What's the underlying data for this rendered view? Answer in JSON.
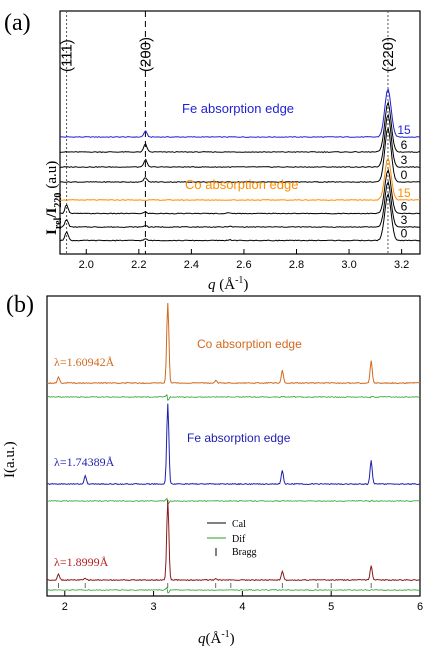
{
  "chart_data": [
    {
      "type": "line",
      "panel_label": "(a)",
      "ylabel_main": "I",
      "ylabel_sub1": "rel",
      "ylabel_mid": "/I",
      "ylabel_sub2": "220",
      "ylabel_unit": "(a.u)",
      "xlabel_q": "q",
      "xlabel_unit_open": " (Å",
      "xlabel_exp": "-1",
      "xlabel_unit_close": ")",
      "xlim": [
        1.9,
        3.27
      ],
      "x_ticks": [
        "2.0",
        "2.2",
        "2.4",
        "2.6",
        "2.8",
        "3.0",
        "3.2"
      ],
      "x_tick_values": [
        2.0,
        2.2,
        2.4,
        2.6,
        2.8,
        3.0,
        3.2
      ],
      "reflections": [
        {
          "label": "(111)",
          "q": 1.925
        },
        {
          "label": "(200)",
          "q": 2.225
        },
        {
          "label": "(220)",
          "q": 3.148
        }
      ],
      "peaks_q": [
        1.925,
        2.225,
        2.545,
        3.148
      ],
      "groups": [
        {
          "name": "Fe absorption edge",
          "color": "#1f1fd6",
          "series": [
            {
              "name": "15",
              "color": "#1f1fd6",
              "offset": 7.0,
              "peaks": [
                0.0,
                0.4,
                0.0,
                3.2
              ]
            },
            {
              "name": "6",
              "color": "#000000",
              "offset": 6.0,
              "peaks": [
                0.0,
                0.55,
                0.0,
                3.3
              ]
            },
            {
              "name": "3",
              "color": "#000000",
              "offset": 5.0,
              "peaks": [
                0.0,
                0.5,
                0.0,
                3.5
              ]
            },
            {
              "name": "0",
              "color": "#000000",
              "offset": 4.0,
              "peaks": [
                0.0,
                0.3,
                0.0,
                3.6
              ]
            }
          ]
        },
        {
          "name": "Co absorption edge",
          "color": "#ff8c00",
          "series": [
            {
              "name": "15",
              "color": "#ff8c00",
              "offset": 2.8,
              "peaks": [
                0.0,
                0.0,
                0.0,
                2.8
              ]
            },
            {
              "name": "6",
              "color": "#000000",
              "offset": 1.9,
              "peaks": [
                0.6,
                0.1,
                0.05,
                2.9
              ]
            },
            {
              "name": "3",
              "color": "#000000",
              "offset": 1.0,
              "peaks": [
                0.5,
                0.1,
                0.05,
                3.0
              ]
            },
            {
              "name": "0",
              "color": "#000000",
              "offset": 0.1,
              "peaks": [
                0.6,
                0.1,
                0.05,
                3.1
              ]
            }
          ]
        }
      ]
    },
    {
      "type": "line",
      "panel_label": "(b)",
      "ylabel": "I(a.u.)",
      "xlabel_q": "q",
      "xlabel_unit_open": "(Å",
      "xlabel_exp": "-1",
      "xlabel_unit_close": ")",
      "xlim": [
        1.8,
        6.0
      ],
      "x_ticks": [
        "2",
        "3",
        "4",
        "5",
        "6"
      ],
      "x_tick_values": [
        2,
        3,
        4,
        5,
        6
      ],
      "panels": [
        {
          "name": "Co absorption edge",
          "wavelength": "λ=1.60942Å",
          "color": "#d2691e",
          "peaks": [
            [
              1.93,
              0.08
            ],
            [
              3.16,
              1.0
            ],
            [
              3.7,
              0.03
            ],
            [
              4.45,
              0.16
            ],
            [
              5.45,
              0.28
            ]
          ]
        },
        {
          "name": "Fe absorption edge",
          "wavelength": "λ=1.74389Å",
          "color": "#1f1fb0",
          "peaks": [
            [
              2.23,
              0.1
            ],
            [
              3.16,
              1.0
            ],
            [
              4.45,
              0.17
            ],
            [
              5.45,
              0.3
            ]
          ]
        },
        {
          "name": "",
          "wavelength": "λ=1.8999Å",
          "color": "#8b1a1a",
          "peaks": [
            [
              1.93,
              0.08
            ],
            [
              2.23,
              0.02
            ],
            [
              3.16,
              1.0
            ],
            [
              3.7,
              0.02
            ],
            [
              4.45,
              0.11
            ],
            [
              5.45,
              0.18
            ]
          ]
        }
      ],
      "bragg_q": [
        1.93,
        2.23,
        3.16,
        3.7,
        3.87,
        4.45,
        4.85,
        5.0,
        5.45
      ],
      "legend": {
        "cal": "Cal",
        "dif": "Dif",
        "bragg": "Bragg"
      },
      "legend_colors": {
        "cal": "#000000",
        "dif": "#2aa02a",
        "bragg": "#000000"
      },
      "dif_color": "#2aa02a"
    }
  ]
}
